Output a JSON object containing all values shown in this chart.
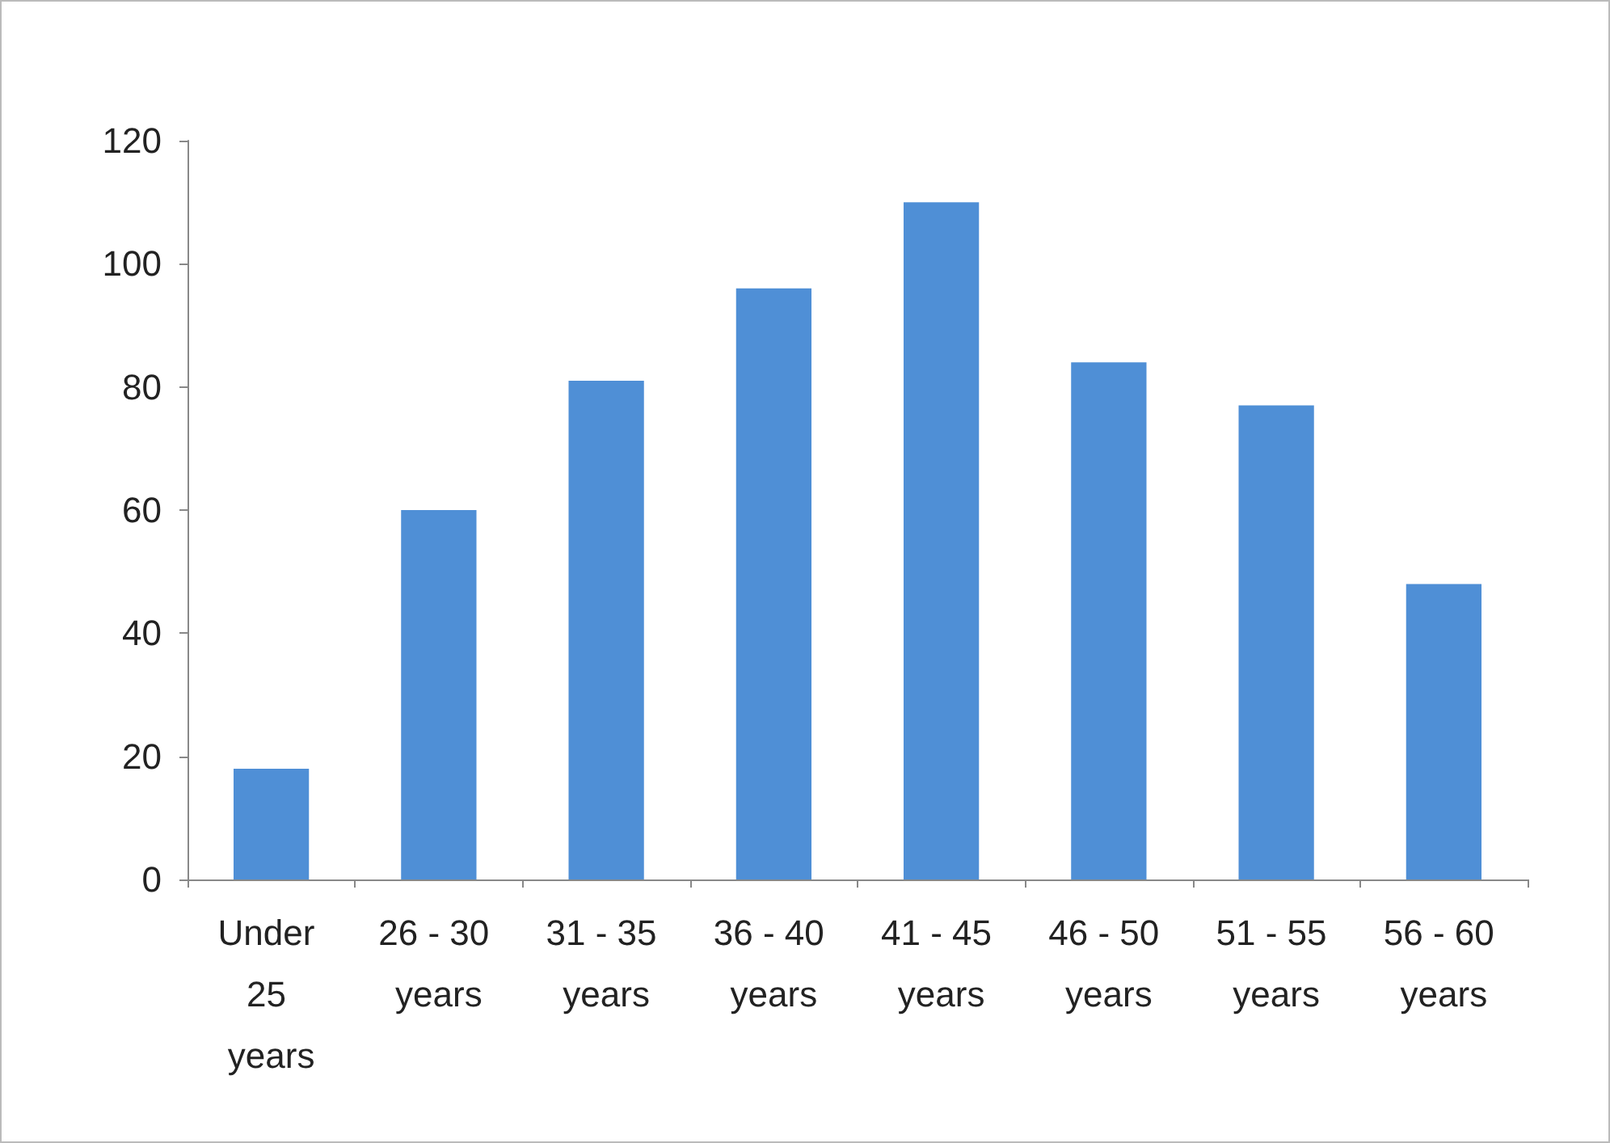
{
  "chart_data": {
    "type": "bar",
    "categories": [
      "Under 25 years",
      "26 - 30 years",
      "31 - 35 years",
      "36 - 40 years",
      "41 - 45 years",
      "46 - 50 years",
      "51 - 55 years",
      "56 - 60 years"
    ],
    "values": [
      18,
      60,
      81,
      96,
      110,
      84,
      77,
      48
    ],
    "color": "#4f8fd6",
    "ylim": [
      0,
      120
    ],
    "yticks": [
      0,
      20,
      40,
      60,
      80,
      100,
      120
    ],
    "grid": false
  }
}
